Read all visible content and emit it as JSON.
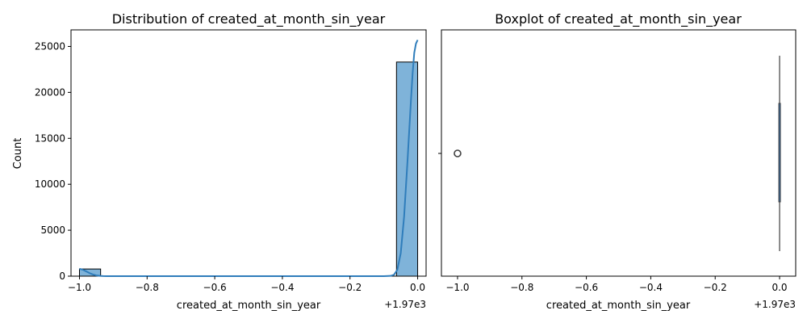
{
  "chart_data": [
    {
      "type": "bar",
      "title": "Distribution of created_at_month_sin_year",
      "xlabel": "created_at_month_sin_year",
      "ylabel": "Count",
      "offset_text": "+1.97e3",
      "xlim": [
        -1.025,
        0.025
      ],
      "ylim": [
        0,
        26800
      ],
      "xticks": [
        -1.0,
        -0.8,
        -0.6,
        -0.4,
        -0.2,
        0.0
      ],
      "xtick_labels": [
        "−1.0",
        "−0.8",
        "−0.6",
        "−0.4",
        "−0.2",
        "0.0"
      ],
      "yticks": [
        0,
        5000,
        10000,
        15000,
        20000,
        25000
      ],
      "ytick_labels": [
        "0",
        "5000",
        "10000",
        "15000",
        "20000",
        "25000"
      ],
      "bin_width": 0.0625,
      "bins": [
        {
          "x0": -1.0,
          "x1": -0.9375,
          "count": 780
        },
        {
          "x0": -0.0625,
          "x1": 0.0,
          "count": 23300
        }
      ],
      "kde": {
        "x": [
          -1.0,
          -0.99,
          -0.98,
          -0.97,
          -0.96,
          -0.95,
          -0.94,
          -0.93,
          -0.92,
          -0.9,
          -0.85,
          -0.5,
          -0.15,
          -0.1,
          -0.08,
          -0.07,
          -0.06,
          -0.05,
          -0.04,
          -0.03,
          -0.02,
          -0.015,
          -0.01,
          -0.005,
          0.0
        ],
        "y": [
          800,
          700,
          520,
          330,
          180,
          80,
          30,
          10,
          3,
          0,
          0,
          0,
          0,
          0,
          30,
          150,
          700,
          2500,
          6500,
          12500,
          19000,
          22000,
          24300,
          25300,
          25700
        ]
      },
      "colors": {
        "bar": "#7fb3d9",
        "edge": "#000000",
        "kde": "#2f7dbb"
      }
    },
    {
      "type": "boxplot",
      "title": "Boxplot of created_at_month_sin_year",
      "xlabel": "created_at_month_sin_year",
      "offset_text": "+1.97e3",
      "xlim": [
        -1.05,
        0.05
      ],
      "xticks": [
        -1.0,
        -0.8,
        -0.6,
        -0.4,
        -0.2,
        0.0
      ],
      "xtick_labels": [
        "−1.0",
        "−0.8",
        "−0.6",
        "−0.4",
        "−0.2",
        "0.0"
      ],
      "box": {
        "q1": 0.0,
        "median": 0.0,
        "q3": 0.0,
        "whisker_low": 0.0,
        "whisker_high": 0.0
      },
      "outliers": [
        -1.0
      ],
      "colors": {
        "box": "#3b6ea5",
        "line": "#3f3f3f",
        "outlier": "#3f3f3f"
      }
    }
  ]
}
